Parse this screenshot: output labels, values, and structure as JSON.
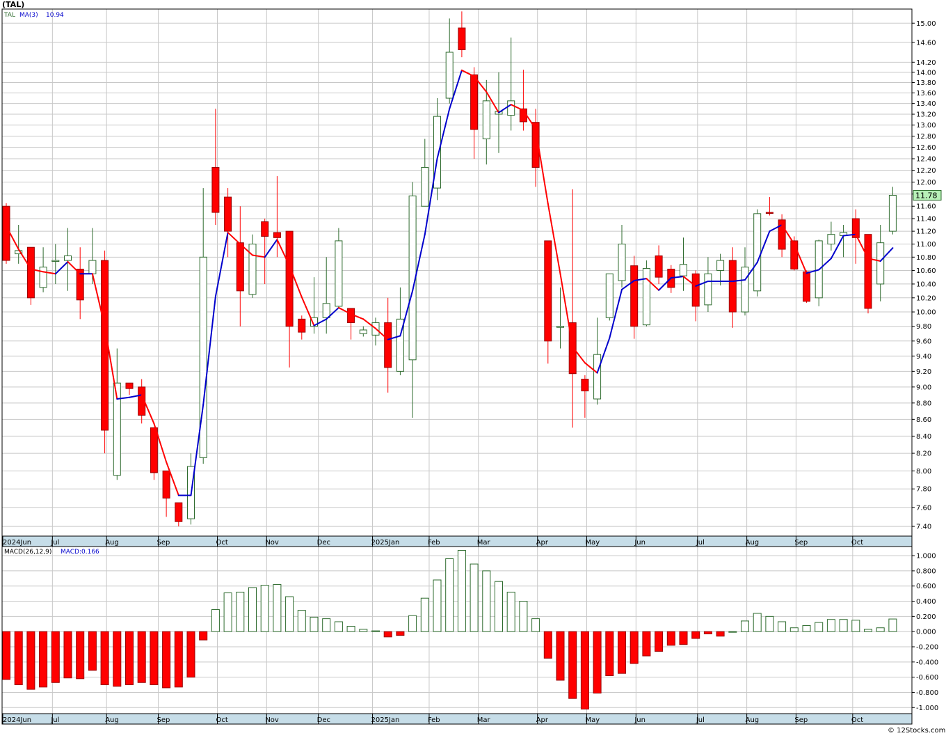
{
  "header": {
    "symbol_title": "(TAL)"
  },
  "price_panel": {
    "legend_symbol": "TAL",
    "legend_ma_name": "MA(3)",
    "legend_ma_value": "10.94",
    "last_price_label": "11.78",
    "y_ticks": [
      "7.40",
      "7.60",
      "7.80",
      "8.00",
      "8.20",
      "8.40",
      "8.60",
      "8.80",
      "9.00",
      "9.20",
      "9.40",
      "9.60",
      "9.80",
      "10.00",
      "10.20",
      "10.40",
      "10.60",
      "10.80",
      "11.00",
      "11.20",
      "11.40",
      "11.60",
      "11.80",
      "12.00",
      "12.20",
      "12.40",
      "12.60",
      "12.80",
      "13.00",
      "13.20",
      "13.40",
      "13.60",
      "13.80",
      "14.00",
      "14.20",
      "14.60",
      "15.00"
    ]
  },
  "macd_panel": {
    "legend_name": "MACD(26,12,9)",
    "legend_value": "MACD:0.166",
    "y_ticks": [
      "1.000",
      "0.800",
      "0.600",
      "0.400",
      "0.200",
      "0.000",
      "-0.200",
      "-0.400",
      "-0.600",
      "-0.800",
      "-1.000"
    ]
  },
  "x_axis": {
    "months": [
      {
        "label": "2024Jun",
        "week": 0
      },
      {
        "label": "Jul",
        "week": 4.2
      },
      {
        "label": "Aug",
        "week": 8.6
      },
      {
        "label": "Sep",
        "week": 12.8
      },
      {
        "label": "Oct",
        "week": 17.6
      },
      {
        "label": "Nov",
        "week": 21.6
      },
      {
        "label": "Dec",
        "week": 25.8
      },
      {
        "label": "2025Jan",
        "week": 30.2
      },
      {
        "label": "Feb",
        "week": 34.8
      },
      {
        "label": "Mar",
        "week": 38.8
      },
      {
        "label": "Apr",
        "week": 43.6
      },
      {
        "label": "May",
        "week": 47.6
      },
      {
        "label": "Jun",
        "week": 51.6
      },
      {
        "label": "Jul",
        "week": 56.6
      },
      {
        "label": "Aug",
        "week": 60.6
      },
      {
        "label": "Sep",
        "week": 64.6
      },
      {
        "label": "Oct",
        "week": 69.2
      }
    ]
  },
  "colors": {
    "up": "#2e6b2e",
    "down": "#ff0000",
    "ma_up": "#0000cc",
    "ma_down": "#ff0000",
    "grid": "#c8c8c8",
    "axis_band": "#c6dde8",
    "last_price_bg": "#b8f0b8"
  },
  "chart_data": [
    {
      "type": "candlestick",
      "title": "(TAL)",
      "interval": "weekly",
      "ylim": [
        7.3,
        15.3
      ],
      "y_scale": "log",
      "ohlc": [
        [
          11.6,
          11.65,
          10.7,
          10.75
        ],
        [
          10.85,
          11.3,
          10.7,
          10.9
        ],
        [
          10.95,
          10.95,
          10.1,
          10.2
        ],
        [
          10.35,
          10.95,
          10.28,
          10.65
        ],
        [
          10.75,
          11.0,
          10.4,
          10.75
        ],
        [
          10.75,
          11.25,
          10.3,
          10.82
        ],
        [
          10.62,
          10.95,
          9.9,
          10.17
        ],
        [
          10.55,
          11.25,
          10.4,
          10.75
        ],
        [
          10.75,
          10.9,
          8.2,
          8.47
        ],
        [
          7.95,
          9.5,
          7.9,
          9.05
        ],
        [
          9.05,
          9.05,
          8.9,
          8.98
        ],
        [
          9.0,
          9.1,
          8.55,
          8.65
        ],
        [
          8.5,
          8.5,
          7.9,
          7.98
        ],
        [
          8.0,
          8.0,
          7.5,
          7.7
        ],
        [
          7.65,
          7.65,
          7.4,
          7.45
        ],
        [
          7.48,
          8.2,
          7.42,
          8.05
        ],
        [
          8.15,
          11.9,
          8.08,
          10.8
        ],
        [
          12.25,
          13.3,
          11.3,
          11.5
        ],
        [
          11.75,
          11.9,
          10.8,
          11.2
        ],
        [
          11.02,
          11.6,
          9.8,
          10.3
        ],
        [
          10.25,
          11.15,
          10.2,
          11.0
        ],
        [
          11.35,
          11.4,
          10.4,
          11.12
        ],
        [
          11.18,
          12.1,
          10.8,
          11.1
        ],
        [
          11.2,
          11.2,
          9.25,
          9.8
        ],
        [
          9.9,
          9.95,
          9.62,
          9.72
        ],
        [
          9.8,
          10.5,
          9.7,
          9.92
        ],
        [
          9.92,
          10.8,
          9.7,
          10.12
        ],
        [
          10.08,
          11.25,
          10.07,
          11.05
        ],
        [
          10.05,
          10.05,
          9.62,
          9.85
        ],
        [
          9.7,
          9.8,
          9.66,
          9.75
        ],
        [
          9.68,
          9.92,
          9.54,
          9.85
        ],
        [
          9.85,
          10.2,
          8.93,
          9.25
        ],
        [
          9.2,
          10.35,
          9.15,
          9.9
        ],
        [
          9.35,
          12.0,
          8.62,
          11.77
        ],
        [
          11.6,
          12.75,
          11.6,
          12.25
        ],
        [
          11.9,
          13.5,
          11.7,
          13.16
        ],
        [
          13.5,
          15.1,
          13.4,
          14.4
        ],
        [
          14.9,
          15.25,
          14.3,
          14.45
        ],
        [
          13.95,
          14.1,
          12.4,
          12.92
        ],
        [
          12.75,
          13.85,
          12.3,
          13.45
        ],
        [
          13.2,
          14.0,
          12.5,
          13.25
        ],
        [
          13.18,
          14.7,
          12.9,
          13.45
        ],
        [
          13.3,
          14.05,
          12.9,
          13.06
        ],
        [
          13.05,
          13.3,
          11.92,
          12.25
        ],
        [
          11.05,
          11.05,
          9.3,
          9.6
        ],
        [
          9.8,
          10.35,
          9.5,
          9.8
        ],
        [
          9.85,
          11.88,
          8.5,
          9.17
        ],
        [
          9.1,
          9.15,
          8.62,
          8.95
        ],
        [
          8.85,
          9.92,
          8.78,
          9.42
        ],
        [
          9.92,
          10.55,
          9.88,
          10.55
        ],
        [
          10.45,
          11.3,
          10.35,
          11.0
        ],
        [
          10.67,
          10.82,
          9.63,
          9.8
        ],
        [
          9.82,
          10.75,
          9.8,
          10.63
        ],
        [
          10.82,
          10.98,
          10.4,
          10.5
        ],
        [
          10.62,
          10.68,
          10.27,
          10.35
        ],
        [
          10.52,
          11.1,
          10.3,
          10.69
        ],
        [
          10.55,
          10.6,
          9.87,
          10.08
        ],
        [
          10.1,
          10.8,
          10.0,
          10.55
        ],
        [
          10.6,
          10.85,
          10.38,
          10.75
        ],
        [
          10.75,
          10.95,
          9.78,
          10.0
        ],
        [
          10.0,
          10.95,
          9.95,
          10.65
        ],
        [
          10.3,
          11.55,
          10.22,
          11.48
        ],
        [
          11.5,
          11.75,
          11.45,
          11.49
        ],
        [
          11.38,
          11.47,
          10.8,
          10.92
        ],
        [
          11.05,
          11.12,
          10.6,
          10.62
        ],
        [
          10.58,
          10.6,
          10.13,
          10.15
        ],
        [
          10.2,
          11.07,
          10.08,
          11.05
        ],
        [
          11.0,
          11.35,
          10.9,
          11.15
        ],
        [
          11.13,
          11.3,
          10.8,
          11.18
        ],
        [
          11.4,
          11.55,
          10.7,
          11.1
        ],
        [
          11.15,
          11.15,
          9.98,
          10.05
        ],
        [
          10.4,
          11.3,
          10.15,
          11.02
        ],
        [
          11.2,
          11.92,
          11.15,
          11.78
        ]
      ]
    },
    {
      "type": "line",
      "title": "MA(3)",
      "y_scale": "log",
      "values": [
        11.28,
        10.92,
        10.62,
        10.58,
        10.55,
        10.73,
        10.55,
        10.55,
        9.8,
        8.85,
        8.87,
        8.9,
        8.55,
        8.1,
        7.73,
        7.73,
        8.78,
        10.22,
        11.18,
        11.0,
        10.83,
        10.8,
        11.07,
        10.67,
        10.21,
        9.81,
        9.9,
        10.06,
        9.97,
        9.9,
        9.77,
        9.62,
        9.67,
        10.3,
        11.15,
        12.4,
        13.3,
        14.04,
        13.92,
        13.62,
        13.23,
        13.38,
        13.27,
        12.93,
        11.64,
        10.55,
        9.52,
        9.31,
        9.18,
        9.64,
        10.32,
        10.45,
        10.48,
        10.31,
        10.49,
        10.51,
        10.37,
        10.44,
        10.44,
        10.44,
        10.46,
        10.72,
        11.2,
        11.3,
        11.0,
        10.56,
        10.61,
        10.78,
        11.13,
        11.15,
        10.78,
        10.74,
        10.94
      ],
      "color_rule": "blue when rising, red when falling"
    },
    {
      "type": "bar",
      "title": "MACD(26,12,9)",
      "ylim": [
        -1.08,
        1.12
      ],
      "values": [
        -0.63,
        -0.7,
        -0.76,
        -0.73,
        -0.67,
        -0.61,
        -0.62,
        -0.51,
        -0.7,
        -0.72,
        -0.7,
        -0.67,
        -0.7,
        -0.74,
        -0.73,
        -0.6,
        -0.11,
        0.29,
        0.51,
        0.52,
        0.58,
        0.61,
        0.62,
        0.46,
        0.28,
        0.19,
        0.17,
        0.13,
        0.07,
        0.03,
        0.01,
        -0.07,
        -0.05,
        0.21,
        0.44,
        0.68,
        0.96,
        1.07,
        0.89,
        0.8,
        0.66,
        0.52,
        0.4,
        0.17,
        -0.35,
        -0.64,
        -0.88,
        -1.02,
        -0.81,
        -0.58,
        -0.55,
        -0.42,
        -0.32,
        -0.26,
        -0.18,
        -0.17,
        -0.09,
        -0.03,
        -0.06,
        0.0,
        0.14,
        0.24,
        0.2,
        0.13,
        0.05,
        0.08,
        0.12,
        0.16,
        0.16,
        0.15,
        0.03,
        0.05,
        0.166
      ]
    }
  ],
  "footer": {
    "watermark": "© 12Stocks.com"
  }
}
